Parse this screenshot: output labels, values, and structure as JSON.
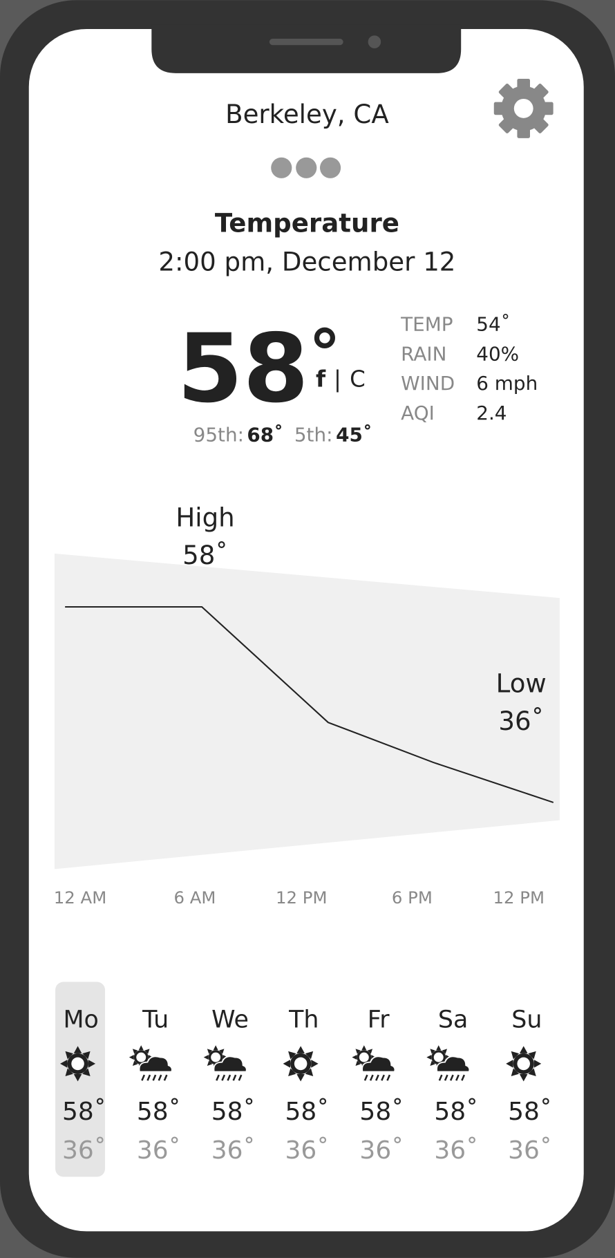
{
  "header": {
    "location": "Berkeley, CA"
  },
  "title": "Temperature",
  "datetime": "2:00 pm, December 12",
  "current": {
    "temp": "58",
    "degree": "°",
    "unit_f": "f",
    "separator": "|",
    "unit_c": "C"
  },
  "percentiles": [
    {
      "label": "95th:",
      "value": "68˚"
    },
    {
      "label": "5th:",
      "value": "45˚"
    }
  ],
  "stats": [
    {
      "label": "TEMP",
      "value": "54˚"
    },
    {
      "label": "RAIN",
      "value": "40%"
    },
    {
      "label": "WIND",
      "value": "6 mph"
    },
    {
      "label": "AQI",
      "value": "2.4"
    }
  ],
  "chart": {
    "type": "line",
    "x": [
      0.5,
      7,
      13,
      18,
      23.7
    ],
    "values": [
      58,
      58,
      45,
      40.5,
      36
    ],
    "xlim": [
      0,
      24
    ],
    "ylim": [
      27,
      66.7
    ],
    "band": {
      "x": [
        0,
        24
      ],
      "upper": [
        64,
        59
      ],
      "lower": [
        28.5,
        34
      ]
    },
    "annotations": [
      {
        "label": "High",
        "value": "58˚"
      },
      {
        "label": "Low",
        "value": "36˚"
      }
    ],
    "x_labels": [
      "12 AM",
      "6 AM",
      "12 PM",
      "6 PM",
      "12 PM"
    ]
  },
  "forecast": [
    {
      "day": "Mo",
      "icon": "sun",
      "high": "58˚",
      "low": "36˚",
      "selected": true
    },
    {
      "day": "Tu",
      "icon": "sun-cloud-rain",
      "high": "58˚",
      "low": "36˚",
      "selected": false
    },
    {
      "day": "We",
      "icon": "sun-cloud-rain",
      "high": "58˚",
      "low": "36˚",
      "selected": false
    },
    {
      "day": "Th",
      "icon": "sun",
      "high": "58˚",
      "low": "36˚",
      "selected": false
    },
    {
      "day": "Fr",
      "icon": "sun-cloud-rain",
      "high": "58˚",
      "low": "36˚",
      "selected": false
    },
    {
      "day": "Sa",
      "icon": "sun-cloud-rain",
      "high": "58˚",
      "low": "36˚",
      "selected": false
    },
    {
      "day": "Su",
      "icon": "sun",
      "high": "58˚",
      "low": "36˚",
      "selected": false
    }
  ]
}
